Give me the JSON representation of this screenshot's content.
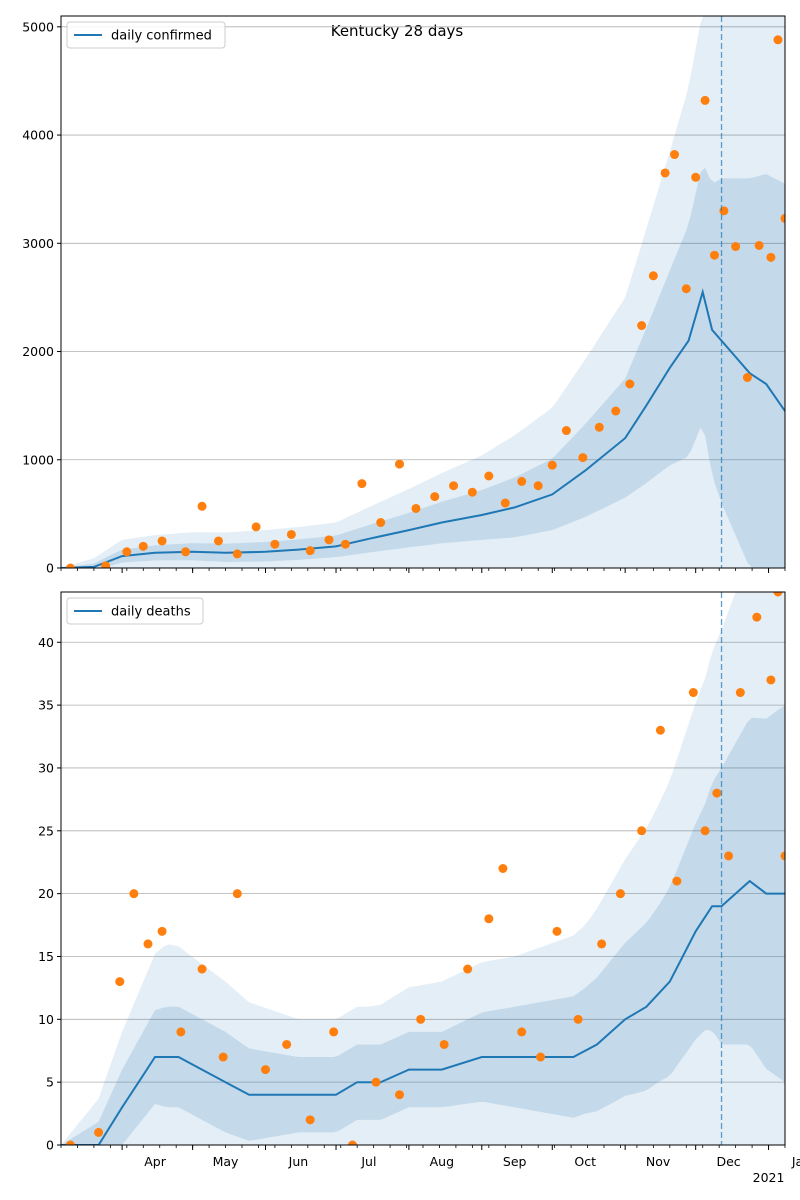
{
  "figure_title": "Kentucky 28 days",
  "colors": {
    "line": "#1f77b4",
    "points": "#ff7f0e",
    "band": "#1f77b4",
    "grid": "#b0b0b0"
  },
  "chart_data": [
    {
      "type": "line",
      "legend": "daily confirmed",
      "legend_loc": "upper-left",
      "ylim": [
        0,
        5100
      ],
      "yticks": [
        0,
        1000,
        2000,
        3000,
        4000,
        5000
      ],
      "grid": "y",
      "x_months": [
        "Apr",
        "May",
        "Jun",
        "Jul",
        "Aug",
        "Sep",
        "Oct",
        "Nov",
        "Dec",
        "Jan"
      ],
      "x_year_label": "2021",
      "x_range": [
        "2020-03-06",
        "2021-01-08"
      ],
      "forecast_start": "2020-12-12",
      "series": [
        {
          "name": "daily confirmed",
          "x": [
            "2020-03-06",
            "2020-03-20",
            "2020-04-01",
            "2020-04-15",
            "2020-05-01",
            "2020-05-15",
            "2020-06-01",
            "2020-06-15",
            "2020-07-01",
            "2020-07-15",
            "2020-08-01",
            "2020-08-15",
            "2020-09-01",
            "2020-09-15",
            "2020-10-01",
            "2020-10-15",
            "2020-11-01",
            "2020-11-10",
            "2020-11-20",
            "2020-11-28",
            "2020-12-04",
            "2020-12-08",
            "2020-12-12",
            "2020-12-18",
            "2020-12-24",
            "2020-12-31",
            "2021-01-08"
          ],
          "y": [
            0,
            10,
            110,
            140,
            150,
            140,
            150,
            170,
            200,
            270,
            350,
            420,
            490,
            560,
            680,
            900,
            1200,
            1500,
            1850,
            2100,
            2550,
            2200,
            2100,
            1950,
            1800,
            1700,
            1450
          ]
        },
        {
          "name": "",
          "mode": "markers",
          "x": [
            "2020-03-10",
            "2020-03-25",
            "2020-04-03",
            "2020-04-10",
            "2020-04-18",
            "2020-04-28",
            "2020-05-05",
            "2020-05-12",
            "2020-05-20",
            "2020-05-28",
            "2020-06-05",
            "2020-06-12",
            "2020-06-20",
            "2020-06-28",
            "2020-07-05",
            "2020-07-12",
            "2020-07-20",
            "2020-07-28",
            "2020-08-04",
            "2020-08-12",
            "2020-08-20",
            "2020-08-28",
            "2020-09-04",
            "2020-09-11",
            "2020-09-18",
            "2020-09-25",
            "2020-10-01",
            "2020-10-07",
            "2020-10-14",
            "2020-10-21",
            "2020-10-28",
            "2020-11-03",
            "2020-11-08",
            "2020-11-13",
            "2020-11-18",
            "2020-11-22",
            "2020-11-27",
            "2020-12-01",
            "2020-12-05",
            "2020-12-09",
            "2020-12-13",
            "2020-12-18",
            "2020-12-23",
            "2020-12-28",
            "2021-01-02",
            "2021-01-05",
            "2021-01-08"
          ],
          "y": [
            0,
            20,
            150,
            200,
            250,
            150,
            570,
            250,
            130,
            380,
            220,
            310,
            160,
            260,
            220,
            780,
            420,
            960,
            550,
            660,
            760,
            700,
            850,
            600,
            800,
            760,
            950,
            1270,
            1020,
            1300,
            1450,
            1700,
            2240,
            2700,
            3650,
            3820,
            2580,
            3610,
            4320,
            2890,
            3300,
            2970,
            1760,
            2980,
            2870,
            4880,
            3230
          ]
        }
      ],
      "band_half_widths": {
        "x": [
          "2020-03-06",
          "2020-04-01",
          "2020-05-01",
          "2020-06-01",
          "2020-07-01",
          "2020-08-01",
          "2020-09-01",
          "2020-10-01",
          "2020-11-01",
          "2020-11-20",
          "2020-12-04",
          "2020-12-12",
          "2020-12-24",
          "2021-01-08"
        ],
        "inner": [
          0,
          60,
          80,
          90,
          100,
          160,
          230,
          330,
          550,
          900,
          1200,
          1500,
          1800,
          2100
        ],
        "outer": [
          0,
          150,
          180,
          200,
          220,
          380,
          550,
          800,
          1300,
          2000,
          2600,
          3200,
          3800,
          4200
        ]
      }
    },
    {
      "type": "line",
      "legend": "daily deaths",
      "legend_loc": "upper-left",
      "ylim": [
        0,
        44
      ],
      "yticks": [
        0,
        5,
        10,
        15,
        20,
        25,
        30,
        35,
        40
      ],
      "grid": "y",
      "x_months": [
        "Apr",
        "May",
        "Jun",
        "Jul",
        "Aug",
        "Sep",
        "Oct",
        "Nov",
        "Dec",
        "Jan"
      ],
      "x_year_label": "2021",
      "x_range": [
        "2020-03-06",
        "2021-01-08"
      ],
      "forecast_start": "2020-12-12",
      "series": [
        {
          "name": "daily deaths",
          "x": [
            "2020-03-06",
            "2020-03-22",
            "2020-04-01",
            "2020-04-08",
            "2020-04-15",
            "2020-04-25",
            "2020-05-05",
            "2020-05-15",
            "2020-05-25",
            "2020-06-01",
            "2020-06-15",
            "2020-07-01",
            "2020-07-10",
            "2020-07-20",
            "2020-08-01",
            "2020-08-15",
            "2020-09-01",
            "2020-09-15",
            "2020-10-01",
            "2020-10-10",
            "2020-10-20",
            "2020-11-01",
            "2020-11-10",
            "2020-11-20",
            "2020-12-01",
            "2020-12-08",
            "2020-12-12",
            "2020-12-18",
            "2020-12-24",
            "2020-12-31",
            "2021-01-08"
          ],
          "y": [
            0,
            0,
            3,
            5,
            7,
            7,
            6,
            5,
            4,
            4,
            4,
            4,
            5,
            5,
            6,
            6,
            7,
            7,
            7,
            7,
            8,
            10,
            11,
            13,
            17,
            19,
            19,
            20,
            21,
            20,
            20
          ]
        },
        {
          "name": "",
          "mode": "markers",
          "x": [
            "2020-03-10",
            "2020-03-22",
            "2020-03-31",
            "2020-04-06",
            "2020-04-12",
            "2020-04-18",
            "2020-04-26",
            "2020-05-05",
            "2020-05-14",
            "2020-05-20",
            "2020-06-01",
            "2020-06-10",
            "2020-06-20",
            "2020-06-30",
            "2020-07-08",
            "2020-07-18",
            "2020-07-28",
            "2020-08-06",
            "2020-08-16",
            "2020-08-26",
            "2020-09-04",
            "2020-09-10",
            "2020-09-18",
            "2020-09-26",
            "2020-10-03",
            "2020-10-12",
            "2020-10-22",
            "2020-10-30",
            "2020-11-08",
            "2020-11-16",
            "2020-11-23",
            "2020-11-30",
            "2020-12-05",
            "2020-12-10",
            "2020-12-15",
            "2020-12-20",
            "2020-12-27",
            "2021-01-02",
            "2021-01-05",
            "2021-01-08"
          ],
          "y": [
            0,
            1,
            13,
            20,
            16,
            17,
            9,
            14,
            7,
            20,
            6,
            8,
            2,
            9,
            0,
            5,
            4,
            10,
            8,
            14,
            18,
            22,
            9,
            7,
            17,
            10,
            16,
            20,
            25,
            33,
            21,
            36,
            25,
            28,
            23,
            36,
            42,
            37,
            44,
            23
          ]
        }
      ],
      "band_half_widths": {
        "x": [
          "2020-03-06",
          "2020-04-01",
          "2020-04-20",
          "2020-05-15",
          "2020-06-15",
          "2020-07-15",
          "2020-08-15",
          "2020-09-15",
          "2020-10-15",
          "2020-11-15",
          "2020-12-05",
          "2020-12-12",
          "2020-12-24",
          "2021-01-08"
        ],
        "inner": [
          0,
          3,
          4,
          4,
          3,
          3,
          3,
          4,
          5,
          7,
          9,
          11,
          13,
          15
        ],
        "outer": [
          0,
          6,
          9,
          8,
          6,
          6,
          7,
          8,
          10,
          15,
          19,
          22,
          26,
          30
        ]
      }
    }
  ]
}
